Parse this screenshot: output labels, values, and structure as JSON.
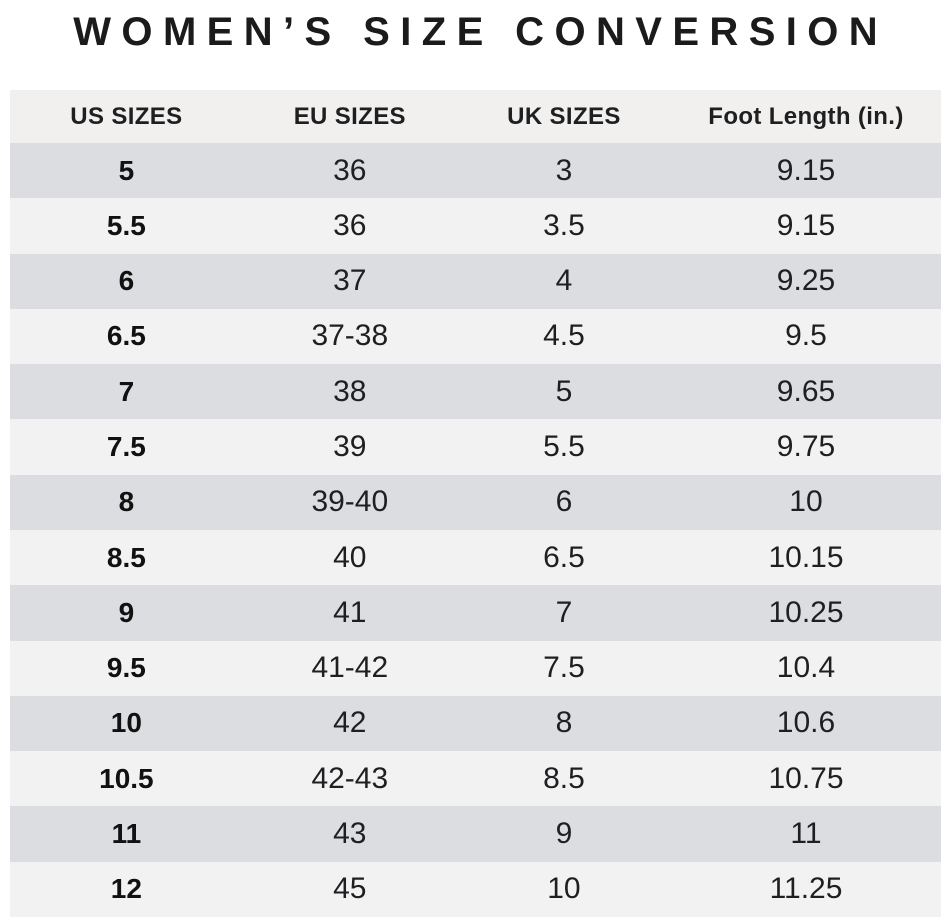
{
  "title": "WOMEN’S SIZE CONVERSION",
  "table": {
    "headers": [
      "US SIZES",
      "EU SIZES",
      "UK SIZES",
      "Foot Length (in.)"
    ],
    "rows": [
      [
        "5",
        "36",
        "3",
        "9.15"
      ],
      [
        "5.5",
        "36",
        "3.5",
        "9.15"
      ],
      [
        "6",
        "37",
        "4",
        "9.25"
      ],
      [
        "6.5",
        "37-38",
        "4.5",
        "9.5"
      ],
      [
        "7",
        "38",
        "5",
        "9.65"
      ],
      [
        "7.5",
        "39",
        "5.5",
        "9.75"
      ],
      [
        "8",
        "39-40",
        "6",
        "10"
      ],
      [
        "8.5",
        "40",
        "6.5",
        "10.15"
      ],
      [
        "9",
        "41",
        "7",
        "10.25"
      ],
      [
        "9.5",
        "41-42",
        "7.5",
        "10.4"
      ],
      [
        "10",
        "42",
        "8",
        "10.6"
      ],
      [
        "10.5",
        "42-43",
        "8.5",
        "10.75"
      ],
      [
        "11",
        "43",
        "9",
        "11"
      ],
      [
        "12",
        "45",
        "10",
        "11.25"
      ]
    ]
  },
  "colors": {
    "header_bg": "#f1f0ef",
    "row_dark": "#dcdde0",
    "row_light": "#f2f2f3",
    "text": "#1e1f21",
    "title": "#1b1b1b",
    "background": "#ffffff"
  },
  "chart_data": {
    "type": "table",
    "title": "WOMEN’S SIZE CONVERSION",
    "columns": [
      "US SIZES",
      "EU SIZES",
      "UK SIZES",
      "Foot Length (in.)"
    ],
    "rows": [
      [
        "5",
        "36",
        "3",
        "9.15"
      ],
      [
        "5.5",
        "36",
        "3.5",
        "9.15"
      ],
      [
        "6",
        "37",
        "4",
        "9.25"
      ],
      [
        "6.5",
        "37-38",
        "4.5",
        "9.5"
      ],
      [
        "7",
        "38",
        "5",
        "9.65"
      ],
      [
        "7.5",
        "39",
        "5.5",
        "9.75"
      ],
      [
        "8",
        "39-40",
        "6",
        "10"
      ],
      [
        "8.5",
        "40",
        "6.5",
        "10.15"
      ],
      [
        "9",
        "41",
        "7",
        "10.25"
      ],
      [
        "9.5",
        "41-42",
        "7.5",
        "10.4"
      ],
      [
        "10",
        "42",
        "8",
        "10.6"
      ],
      [
        "10.5",
        "42-43",
        "8.5",
        "10.75"
      ],
      [
        "11",
        "43",
        "9",
        "11"
      ],
      [
        "12",
        "45",
        "10",
        "11.25"
      ]
    ],
    "layout_hints": {
      "row_striping": "odd rows dark gray, even rows light gray",
      "first_column_bold": true,
      "alignment": "center"
    }
  }
}
